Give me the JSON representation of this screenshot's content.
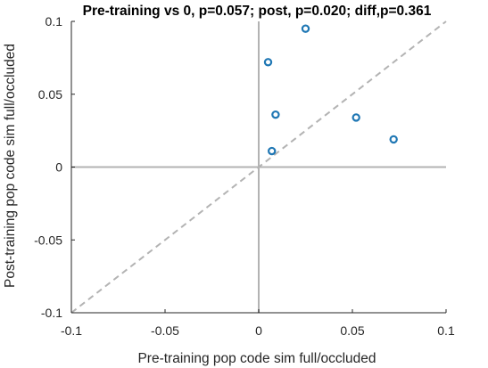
{
  "chart_data": {
    "type": "scatter",
    "title": "Pre-training vs 0, p=0.057; post, p=0.020; diff,p=0.361",
    "xlabel": "Pre-training pop code sim full/occluded",
    "ylabel": "Post-training pop code sim  full/occluded",
    "xlim": [
      -0.1,
      0.1
    ],
    "ylim": [
      -0.1,
      0.1
    ],
    "x_ticks": [
      -0.1,
      -0.05,
      0,
      0.05,
      0.1
    ],
    "y_ticks": [
      -0.1,
      -0.05,
      0,
      0.05,
      0.1
    ],
    "x_tick_labels": [
      "-0.1",
      "-0.05",
      "0",
      "0.05",
      "0.1"
    ],
    "y_tick_labels": [
      "-0.1",
      "-0.05",
      "0",
      "0.05",
      "0.1"
    ],
    "grid": false,
    "reference_lines": {
      "x_zero": true,
      "y_zero": true,
      "identity_dashed": true
    },
    "series": [
      {
        "marker": "open-circle",
        "color": "#1f77b4",
        "points": [
          {
            "x": 0.025,
            "y": 0.095
          },
          {
            "x": 0.005,
            "y": 0.072
          },
          {
            "x": 0.009,
            "y": 0.036
          },
          {
            "x": 0.007,
            "y": 0.011
          },
          {
            "x": 0.052,
            "y": 0.034
          },
          {
            "x": 0.072,
            "y": 0.019
          }
        ]
      }
    ],
    "colors": {
      "axis": "#262626",
      "zero_line": "#b3b3b3",
      "identity_line": "#b3b3b3"
    }
  }
}
